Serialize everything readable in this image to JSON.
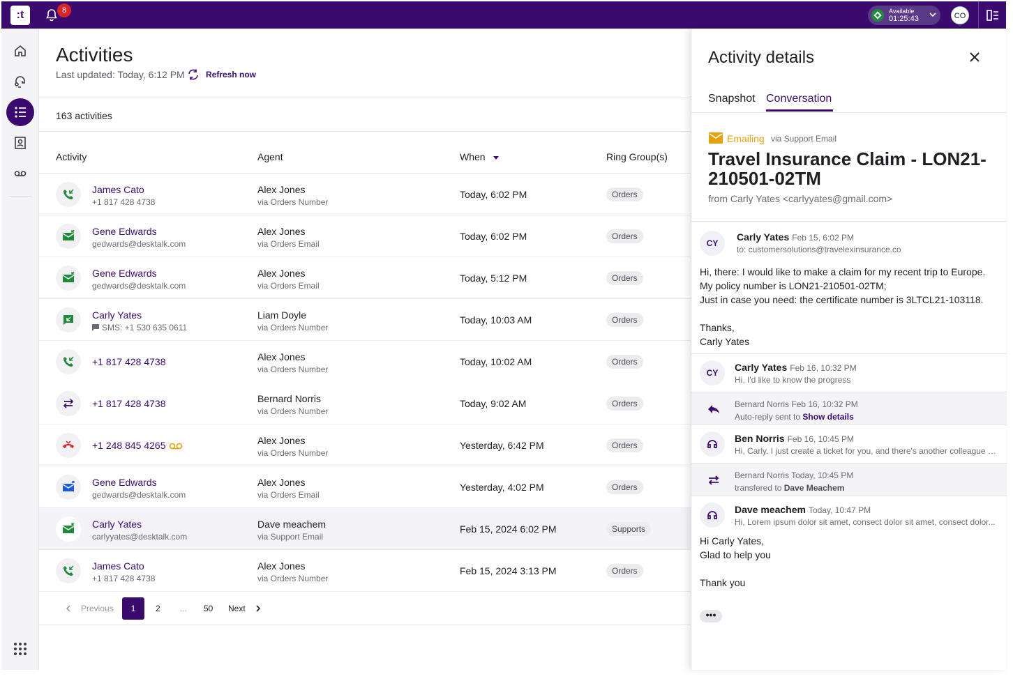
{
  "topbar": {
    "logo": ":t",
    "notifications": "8",
    "status_label": "Available",
    "status_time": "01:25:43",
    "avatar": "CO"
  },
  "page": {
    "title": "Activities",
    "last_updated": "Last updated: Today, 6:12 PM",
    "refresh": "Refresh now",
    "count": "163 activities"
  },
  "table": {
    "headers": [
      "Activity",
      "Agent",
      "When",
      "Ring Group(s)"
    ],
    "rows": [
      {
        "icon": "incoming-call",
        "name": "James Cato",
        "sub": "+1 817 428 4738",
        "agent": "Alex Jones",
        "via": "via Orders Number",
        "when": "Today, 6:02 PM",
        "group": "Orders"
      },
      {
        "icon": "incoming-email",
        "name": "Gene Edwards",
        "sub": "gedwards@desktalk.com",
        "agent": "Alex Jones",
        "via": "via Orders Email",
        "when": "Today, 6:02 PM",
        "group": "Orders"
      },
      {
        "icon": "incoming-email",
        "name": "Gene Edwards",
        "sub": "gedwards@desktalk.com",
        "agent": "Alex Jones",
        "via": "via Orders Email",
        "when": "Today, 5:12 PM",
        "group": "Orders"
      },
      {
        "icon": "incoming-sms",
        "name": "Carly Yates",
        "sub": "SMS: +1 530 635 0611",
        "agent": "Liam Doyle",
        "via": "via Orders Number",
        "when": "Today, 10:03 AM",
        "group": "Orders"
      },
      {
        "icon": "incoming-call",
        "name": "+1 817 428 4738",
        "sub": "",
        "agent": "Alex Jones",
        "via": "via Orders Number",
        "when": "Today, 10:02 AM",
        "group": "Orders"
      },
      {
        "icon": "transfer",
        "name": "+1 817 428 4738",
        "sub": "",
        "agent": "Bernard Norris",
        "via": "via Orders Number",
        "when": "Today, 9:02 AM",
        "group": "Orders"
      },
      {
        "icon": "missed-call",
        "name": "+1 248 845 4265",
        "sub": "",
        "agent": "Alex Jones",
        "via": "via Orders Number",
        "when": "Yesterday, 6:42 PM",
        "group": "Orders"
      },
      {
        "icon": "outgoing-email",
        "name": "Gene Edwards",
        "sub": "gedwards@desktalk.com",
        "agent": "Alex Jones",
        "via": "via Orders Email",
        "when": "Yesterday, 4:02 PM",
        "group": "Orders"
      },
      {
        "icon": "incoming-email",
        "name": "Carly Yates",
        "sub": "carlyyates@desktalk.com",
        "agent": "Dave meachem",
        "via": "via Support Email",
        "when": "Feb 15, 2024 6:02 PM",
        "group": "Supports"
      },
      {
        "icon": "incoming-call",
        "name": "James Cato",
        "sub": "+1 817 428 4738",
        "agent": "Alex Jones",
        "via": "via Orders Number",
        "when": "Feb 15, 2024 3:13 PM",
        "group": "Orders"
      }
    ]
  },
  "pager": {
    "previous": "Previous",
    "current": "1",
    "page2": "2",
    "ellipsis": "...",
    "last": "50",
    "next": "Next"
  },
  "panel": {
    "title": "Activity details",
    "tabs": [
      "Snapshot",
      "Conversation"
    ],
    "channel": "Emailing",
    "channel_via": "via Support Email",
    "subject": "Travel Insurance Claim - LON21-210501-02TM",
    "from": "from Carly Yates <carlyyates@gmail.com>",
    "messages": {
      "m1": {
        "initials": "CY",
        "name": "Carly Yates",
        "date": "Feb 15, 6:02 PM",
        "to": "to: customersolutions@travelexinsurance.co",
        "body": [
          "Hi, there: I would like to make a claim for my recent trip to Europe.",
          "My policy number is LON21-210501-02TM;",
          "Just in case you need: the certificate number is 3LTCL21-103118.",
          "",
          "Thanks,",
          "Carly Yates"
        ]
      },
      "m2": {
        "initials": "CY",
        "name": "Carly Yates",
        "date": "Feb 16, 10:32 PM",
        "preview": "Hi, I'd like to know the progress"
      },
      "s1": {
        "name": "Bernard Norris",
        "date": "Feb 16, 10:32 PM",
        "text": "Auto-reply sent to",
        "link": "Show details"
      },
      "m3": {
        "name": "Ben Norris",
        "date": "Feb 16, 10:45 PM",
        "preview": "Hi, Carly. I just create a ticket for you, and there's another colleague w..."
      },
      "s2": {
        "name": "Bernard Norris",
        "date": "Today, 10:45 PM",
        "text": "transfered to",
        "target": "Dave Meachem"
      },
      "m4": {
        "name": "Dave meachem",
        "date": "Today, 10:47 PM",
        "preview": "Hi, Lorem ipsum dolor sit amet, consect dolor sit amet, consect dolor...",
        "body": [
          "Hi Carly Yates,",
          "Glad to help you",
          "",
          "Thank you"
        ]
      }
    },
    "more": "•••"
  },
  "colors": {
    "brand": "#3a0a6e",
    "call_green": "#1e8a3a",
    "email_yellow": "#e6a00e",
    "missed_red": "#d7262a",
    "outgoing_blue": "#1f5bd6"
  }
}
